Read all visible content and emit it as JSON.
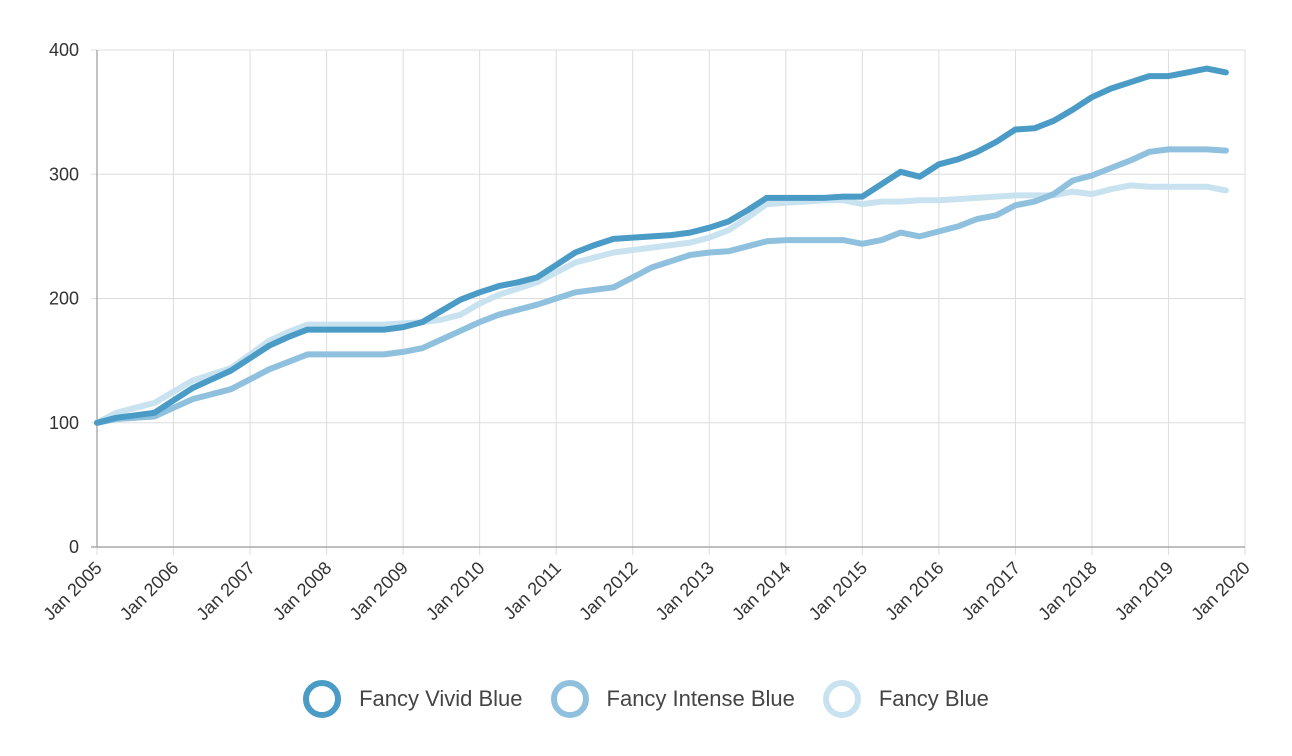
{
  "chart_data": {
    "type": "line",
    "title": "",
    "xlabel": "",
    "ylabel": "",
    "ylim": [
      0,
      400
    ],
    "yticks": [
      "0",
      "100",
      "200",
      "300",
      "400"
    ],
    "xticks": [
      "Jan 2005",
      "Jan 2006",
      "Jan 2007",
      "Jan 2008",
      "Jan 2009",
      "Jan 2010",
      "Jan 2011",
      "Jan 2012",
      "Jan 2013",
      "Jan 2014",
      "Jan 2015",
      "Jan 2016",
      "Jan 2017",
      "Jan 2018",
      "Jan 2019",
      "Jan 2020"
    ],
    "grid": true,
    "legend_position": "bottom",
    "series": [
      {
        "name": "Fancy Vivid Blue",
        "color": "#4a9bc6",
        "points": [
          [
            "2005-01",
            100
          ],
          [
            "2005-04",
            104
          ],
          [
            "2005-07",
            106
          ],
          [
            "2005-10",
            108
          ],
          [
            "2006-01",
            118
          ],
          [
            "2006-04",
            128
          ],
          [
            "2006-07",
            135
          ],
          [
            "2006-10",
            142
          ],
          [
            "2007-01",
            152
          ],
          [
            "2007-04",
            162
          ],
          [
            "2007-07",
            169
          ],
          [
            "2007-10",
            175
          ],
          [
            "2008-01",
            175
          ],
          [
            "2008-04",
            175
          ],
          [
            "2008-07",
            175
          ],
          [
            "2008-10",
            175
          ],
          [
            "2009-01",
            177
          ],
          [
            "2009-04",
            181
          ],
          [
            "2009-07",
            190
          ],
          [
            "2009-10",
            199
          ],
          [
            "2010-01",
            205
          ],
          [
            "2010-04",
            210
          ],
          [
            "2010-07",
            213
          ],
          [
            "2010-10",
            217
          ],
          [
            "2011-01",
            227
          ],
          [
            "2011-04",
            237
          ],
          [
            "2011-07",
            243
          ],
          [
            "2011-10",
            248
          ],
          [
            "2012-01",
            249
          ],
          [
            "2012-04",
            250
          ],
          [
            "2012-07",
            251
          ],
          [
            "2012-10",
            253
          ],
          [
            "2013-01",
            257
          ],
          [
            "2013-04",
            262
          ],
          [
            "2013-07",
            271
          ],
          [
            "2013-10",
            281
          ],
          [
            "2014-01",
            281
          ],
          [
            "2014-04",
            281
          ],
          [
            "2014-07",
            281
          ],
          [
            "2014-10",
            282
          ],
          [
            "2015-01",
            282
          ],
          [
            "2015-04",
            292
          ],
          [
            "2015-07",
            302
          ],
          [
            "2015-10",
            298
          ],
          [
            "2016-01",
            308
          ],
          [
            "2016-04",
            312
          ],
          [
            "2016-07",
            318
          ],
          [
            "2016-10",
            326
          ],
          [
            "2017-01",
            336
          ],
          [
            "2017-04",
            337
          ],
          [
            "2017-07",
            343
          ],
          [
            "2017-10",
            352
          ],
          [
            "2018-01",
            362
          ],
          [
            "2018-04",
            369
          ],
          [
            "2018-07",
            374
          ],
          [
            "2018-10",
            379
          ],
          [
            "2019-01",
            379
          ],
          [
            "2019-04",
            382
          ],
          [
            "2019-07",
            385
          ],
          [
            "2019-10",
            382
          ]
        ]
      },
      {
        "name": "Fancy Intense Blue",
        "color": "#8fc1df",
        "points": [
          [
            "2005-01",
            100
          ],
          [
            "2005-04",
            103
          ],
          [
            "2005-07",
            104
          ],
          [
            "2005-10",
            105
          ],
          [
            "2006-01",
            112
          ],
          [
            "2006-04",
            119
          ],
          [
            "2006-07",
            123
          ],
          [
            "2006-10",
            127
          ],
          [
            "2007-01",
            135
          ],
          [
            "2007-04",
            143
          ],
          [
            "2007-07",
            149
          ],
          [
            "2007-10",
            155
          ],
          [
            "2008-01",
            155
          ],
          [
            "2008-04",
            155
          ],
          [
            "2008-07",
            155
          ],
          [
            "2008-10",
            155
          ],
          [
            "2009-01",
            157
          ],
          [
            "2009-04",
            160
          ],
          [
            "2009-07",
            167
          ],
          [
            "2009-10",
            174
          ],
          [
            "2010-01",
            181
          ],
          [
            "2010-04",
            187
          ],
          [
            "2010-07",
            191
          ],
          [
            "2010-10",
            195
          ],
          [
            "2011-01",
            200
          ],
          [
            "2011-04",
            205
          ],
          [
            "2011-07",
            207
          ],
          [
            "2011-10",
            209
          ],
          [
            "2012-01",
            217
          ],
          [
            "2012-04",
            225
          ],
          [
            "2012-07",
            230
          ],
          [
            "2012-10",
            235
          ],
          [
            "2013-01",
            237
          ],
          [
            "2013-04",
            238
          ],
          [
            "2013-07",
            242
          ],
          [
            "2013-10",
            246
          ],
          [
            "2014-01",
            247
          ],
          [
            "2014-04",
            247
          ],
          [
            "2014-07",
            247
          ],
          [
            "2014-10",
            247
          ],
          [
            "2015-01",
            244
          ],
          [
            "2015-04",
            247
          ],
          [
            "2015-07",
            253
          ],
          [
            "2015-10",
            250
          ],
          [
            "2016-01",
            254
          ],
          [
            "2016-04",
            258
          ],
          [
            "2016-07",
            264
          ],
          [
            "2016-10",
            267
          ],
          [
            "2017-01",
            275
          ],
          [
            "2017-04",
            278
          ],
          [
            "2017-07",
            284
          ],
          [
            "2017-10",
            295
          ],
          [
            "2018-01",
            299
          ],
          [
            "2018-04",
            305
          ],
          [
            "2018-07",
            311
          ],
          [
            "2018-10",
            318
          ],
          [
            "2019-01",
            320
          ],
          [
            "2019-04",
            320
          ],
          [
            "2019-07",
            320
          ],
          [
            "2019-10",
            319
          ]
        ]
      },
      {
        "name": "Fancy Blue",
        "color": "#c9e2f0",
        "points": [
          [
            "2005-01",
            100
          ],
          [
            "2005-04",
            108
          ],
          [
            "2005-07",
            112
          ],
          [
            "2005-10",
            116
          ],
          [
            "2006-01",
            125
          ],
          [
            "2006-04",
            134
          ],
          [
            "2006-07",
            139
          ],
          [
            "2006-10",
            144
          ],
          [
            "2007-01",
            155
          ],
          [
            "2007-04",
            166
          ],
          [
            "2007-07",
            173
          ],
          [
            "2007-10",
            179
          ],
          [
            "2008-01",
            179
          ],
          [
            "2008-04",
            179
          ],
          [
            "2008-07",
            179
          ],
          [
            "2008-10",
            179
          ],
          [
            "2009-01",
            180
          ],
          [
            "2009-04",
            181
          ],
          [
            "2009-07",
            183
          ],
          [
            "2009-10",
            187
          ],
          [
            "2010-01",
            196
          ],
          [
            "2010-04",
            203
          ],
          [
            "2010-07",
            208
          ],
          [
            "2010-10",
            213
          ],
          [
            "2011-01",
            221
          ],
          [
            "2011-04",
            229
          ],
          [
            "2011-07",
            233
          ],
          [
            "2011-10",
            237
          ],
          [
            "2012-01",
            239
          ],
          [
            "2012-04",
            241
          ],
          [
            "2012-07",
            243
          ],
          [
            "2012-10",
            245
          ],
          [
            "2013-01",
            249
          ],
          [
            "2013-04",
            255
          ],
          [
            "2013-07",
            265
          ],
          [
            "2013-10",
            276
          ],
          [
            "2014-01",
            277
          ],
          [
            "2014-04",
            278
          ],
          [
            "2014-07",
            279
          ],
          [
            "2014-10",
            279
          ],
          [
            "2015-01",
            276
          ],
          [
            "2015-04",
            278
          ],
          [
            "2015-07",
            278
          ],
          [
            "2015-10",
            279
          ],
          [
            "2016-01",
            279
          ],
          [
            "2016-04",
            280
          ],
          [
            "2016-07",
            281
          ],
          [
            "2016-10",
            282
          ],
          [
            "2017-01",
            283
          ],
          [
            "2017-04",
            283
          ],
          [
            "2017-07",
            283
          ],
          [
            "2017-10",
            286
          ],
          [
            "2018-01",
            284
          ],
          [
            "2018-04",
            288
          ],
          [
            "2018-07",
            291
          ],
          [
            "2018-10",
            290
          ],
          [
            "2019-01",
            290
          ],
          [
            "2019-04",
            290
          ],
          [
            "2019-07",
            290
          ],
          [
            "2019-10",
            287
          ]
        ]
      }
    ]
  }
}
